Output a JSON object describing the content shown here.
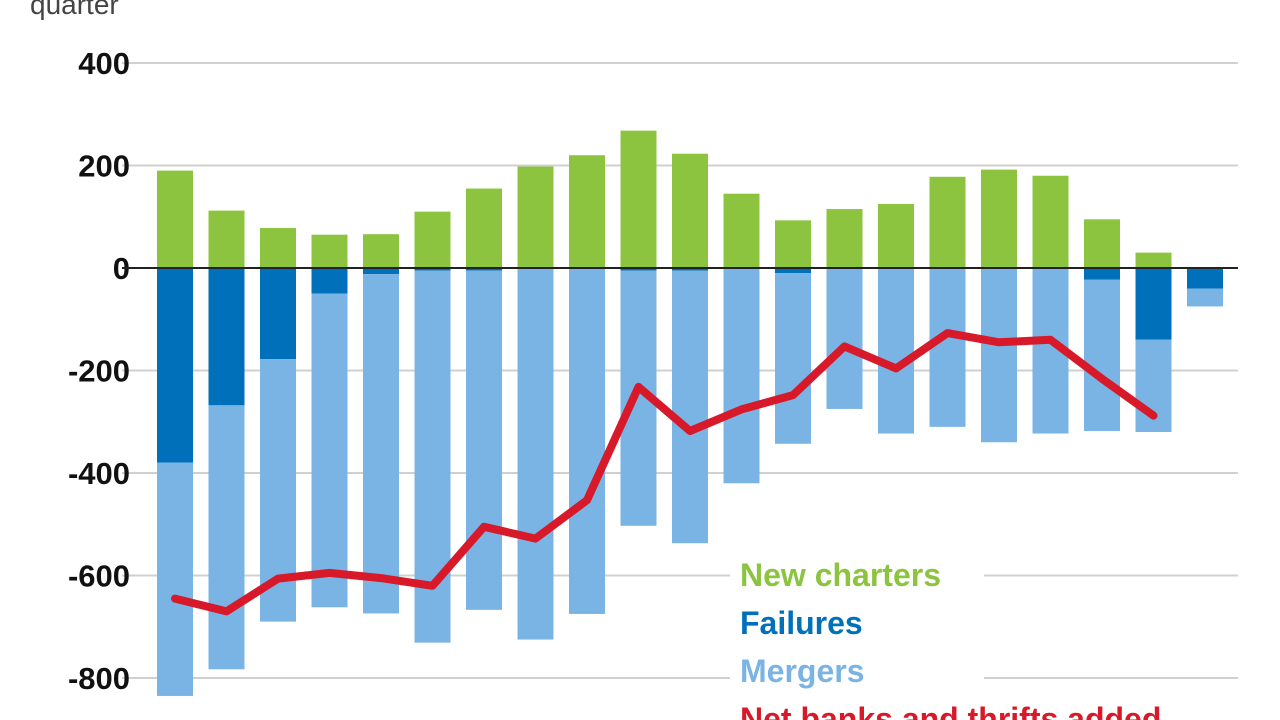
{
  "caption": "quarter",
  "chart_data": {
    "type": "bar",
    "title": "",
    "xlabel": "",
    "ylabel": "",
    "ylim": [
      -850,
      420
    ],
    "yticks": [
      400,
      200,
      0,
      -200,
      -400,
      -600,
      -800
    ],
    "grid": true,
    "legend_placement": "bottom-right",
    "n_bars": 21,
    "series": [
      {
        "name": "New charters",
        "color": "#8cc43f",
        "values": [
          190,
          112,
          78,
          65,
          66,
          110,
          155,
          198,
          220,
          268,
          223,
          145,
          93,
          115,
          125,
          178,
          192,
          180,
          95,
          30,
          0
        ]
      },
      {
        "name": "Failures",
        "color": "#0070bb",
        "values": [
          -380,
          -268,
          -178,
          -50,
          -12,
          -5,
          -5,
          0,
          0,
          -5,
          -5,
          0,
          -10,
          0,
          0,
          0,
          0,
          0,
          -23,
          -140,
          -40
        ]
      },
      {
        "name": "Mergers",
        "color": "#7ab4e4",
        "values": [
          -455,
          -515,
          -512,
          -612,
          -662,
          -726,
          -662,
          -725,
          -675,
          -498,
          -532,
          -420,
          -333,
          -275,
          -323,
          -310,
          -340,
          -323,
          -295,
          -180,
          -35
        ]
      },
      {
        "name": "Net banks and thrifts added",
        "color": "#d7192a",
        "values": [
          -645,
          -670,
          -606,
          -595,
          -605,
          -620,
          -505,
          -528,
          -453,
          -232,
          -318,
          -276,
          -248,
          -153,
          -196,
          -127,
          -145,
          -140,
          -216,
          -288,
          null
        ]
      }
    ]
  }
}
